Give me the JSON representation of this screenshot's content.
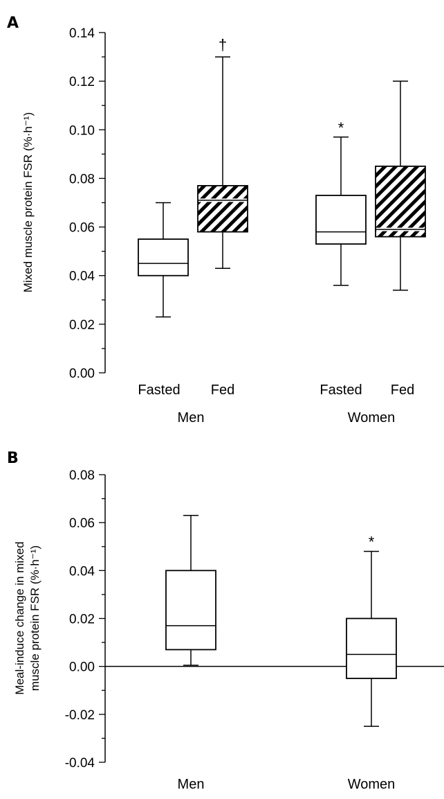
{
  "chart_data": [
    {
      "type": "box",
      "panel": "A",
      "ylabel": "Mixed muscle protein FSR (%·h⁻¹)",
      "ylim": [
        0,
        0.14
      ],
      "yticks": [
        "0.00",
        "0.02",
        "0.04",
        "0.06",
        "0.08",
        "0.10",
        "0.12",
        "0.14"
      ],
      "groups": [
        "Men",
        "Women"
      ],
      "boxes": [
        {
          "group": "Men",
          "category": "Fasted",
          "whisker_low": 0.023,
          "q1": 0.04,
          "median": 0.045,
          "q3": 0.055,
          "whisker_high": 0.07,
          "hatched": false,
          "marker": ""
        },
        {
          "group": "Men",
          "category": "Fed",
          "whisker_low": 0.043,
          "q1": 0.058,
          "median": 0.071,
          "q3": 0.077,
          "whisker_high": 0.13,
          "hatched": true,
          "marker": "†"
        },
        {
          "group": "Women",
          "category": "Fasted",
          "whisker_low": 0.036,
          "q1": 0.053,
          "median": 0.058,
          "q3": 0.073,
          "whisker_high": 0.097,
          "hatched": false,
          "marker": "*"
        },
        {
          "group": "Women",
          "category": "Fed",
          "whisker_low": 0.034,
          "q1": 0.056,
          "median": 0.059,
          "q3": 0.085,
          "whisker_high": 0.12,
          "hatched": true,
          "marker": ""
        }
      ]
    },
    {
      "type": "box",
      "panel": "B",
      "ylabel_lines": [
        "Meal-induce change in mixed",
        "muscle protein FSR (%·h⁻¹)"
      ],
      "ylim": [
        -0.04,
        0.08
      ],
      "yticks": [
        "-0.04",
        "-0.02",
        "0.00",
        "0.02",
        "0.04",
        "0.06",
        "0.08"
      ],
      "zero_line": true,
      "boxes": [
        {
          "category": "Men",
          "whisker_low": 0.0005,
          "q1": 0.007,
          "median": 0.017,
          "q3": 0.04,
          "whisker_high": 0.063,
          "hatched": false,
          "marker": ""
        },
        {
          "category": "Women",
          "whisker_low": -0.025,
          "q1": -0.005,
          "median": 0.005,
          "q3": 0.02,
          "whisker_high": 0.048,
          "hatched": false,
          "marker": "*"
        }
      ]
    }
  ]
}
